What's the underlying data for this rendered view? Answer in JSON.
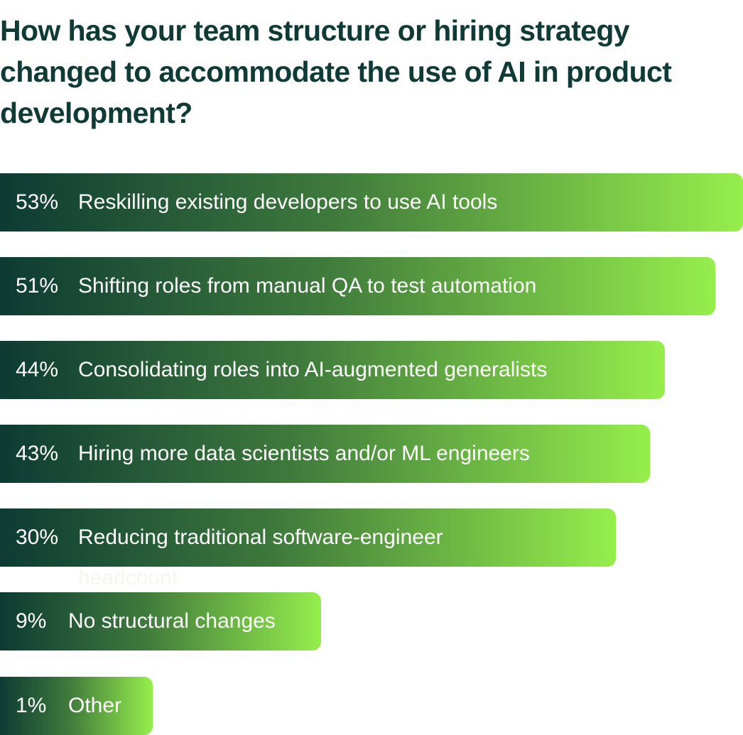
{
  "chart_data": {
    "type": "bar",
    "orientation": "horizontal",
    "title": "How has your team structure or hiring strategy changed to accommodate the use of AI in product development?",
    "xlim": [
      0,
      53
    ],
    "grid": false,
    "legend": "none",
    "colors": {
      "bar_start": "#0d3b33",
      "bar_end": "#96ee4c",
      "title": "#0f3a35",
      "label": "#ffffff"
    },
    "bars": [
      {
        "pct_label": "53%",
        "value": 53,
        "label": "Reskilling existing developers to use AI tools"
      },
      {
        "pct_label": "51%",
        "value": 51,
        "label": "Shifting roles from manual QA to test automation"
      },
      {
        "pct_label": "44%",
        "value": 44,
        "label": "Consolidating roles into AI-augmented generalists"
      },
      {
        "pct_label": "43%",
        "value": 43,
        "label": "Hiring more data scientists and/or ML engineers"
      },
      {
        "pct_label": "30%",
        "value": 30,
        "label": "Reducing traditional software-engineer",
        "label_continued": "headcount"
      },
      {
        "pct_label": "9%",
        "value": 9,
        "label": "No structural changes"
      },
      {
        "pct_label": "1%",
        "value": 1,
        "label": "Other"
      }
    ]
  }
}
